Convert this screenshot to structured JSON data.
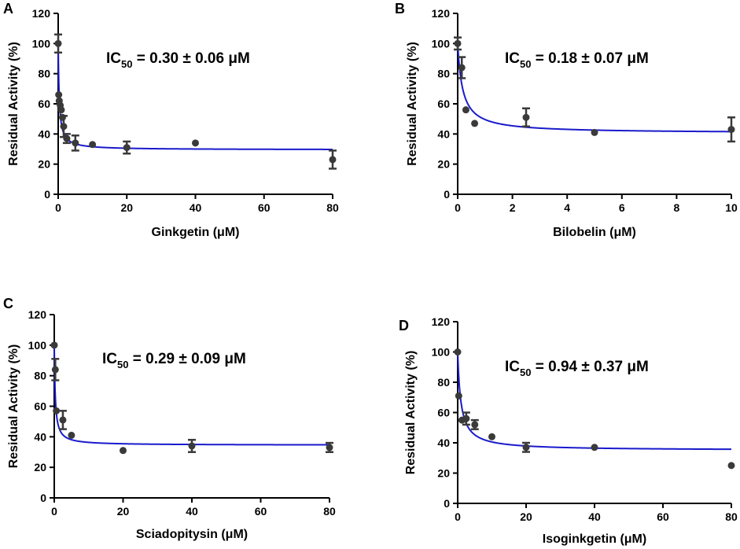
{
  "chart_data": [
    {
      "type": "scatter",
      "panel": "A",
      "xlabel": "Ginkgetin (μM)",
      "ylabel": "Residual Activity (%)",
      "xlim": [
        0,
        80
      ],
      "ylim": [
        0,
        120
      ],
      "xticks": [
        0,
        20,
        40,
        60,
        80
      ],
      "yticks": [
        0,
        20,
        40,
        60,
        80,
        100,
        120
      ],
      "ic50_label": {
        "prefix": "IC",
        "sub": "50",
        "text": " = 0.30 ± 0.06 μM"
      },
      "fit": {
        "bottom": 29.5,
        "ic50": 0.3
      },
      "points": [
        {
          "x": 0,
          "y": 100,
          "err": 6
        },
        {
          "x": 0.15,
          "y": 66,
          "err": 0
        },
        {
          "x": 0.3,
          "y": 62,
          "err": 0
        },
        {
          "x": 0.6,
          "y": 59,
          "err": 0
        },
        {
          "x": 0.9,
          "y": 56,
          "err": 0
        },
        {
          "x": 1.25,
          "y": 51,
          "err": 0
        },
        {
          "x": 1.6,
          "y": 45,
          "err": 7
        },
        {
          "x": 2.5,
          "y": 37,
          "err": 3
        },
        {
          "x": 5,
          "y": 34,
          "err": 5
        },
        {
          "x": 10,
          "y": 33,
          "err": 0
        },
        {
          "x": 20,
          "y": 31,
          "err": 4
        },
        {
          "x": 40,
          "y": 34,
          "err": 0
        },
        {
          "x": 80,
          "y": 23,
          "err": 6
        }
      ]
    },
    {
      "type": "scatter",
      "panel": "B",
      "xlabel": "Bilobelin (μM)",
      "ylabel": "Residual Activity (%)",
      "xlim": [
        0,
        10
      ],
      "ylim": [
        0,
        120
      ],
      "xticks": [
        0,
        2,
        4,
        6,
        8,
        10
      ],
      "yticks": [
        0,
        20,
        40,
        60,
        80,
        100,
        120
      ],
      "ic50_label": {
        "prefix": "IC",
        "sub": "50",
        "text": " = 0.18 ± 0.07 μM"
      },
      "fit": {
        "bottom": 40.5,
        "ic50": 0.18
      },
      "points": [
        {
          "x": 0,
          "y": 100,
          "err": 4
        },
        {
          "x": 0.15,
          "y": 84,
          "err": 7
        },
        {
          "x": 0.3,
          "y": 56,
          "err": 0
        },
        {
          "x": 0.62,
          "y": 47,
          "err": 0
        },
        {
          "x": 2.5,
          "y": 51,
          "err": 6
        },
        {
          "x": 5,
          "y": 41,
          "err": 0
        },
        {
          "x": 10,
          "y": 43,
          "err": 8
        }
      ]
    },
    {
      "type": "scatter",
      "panel": "C",
      "xlabel": "Sciadopitysin (μM)",
      "ylabel": "Residual Activity (%)",
      "xlim": [
        0,
        80
      ],
      "ylim": [
        0,
        120
      ],
      "xticks": [
        0,
        20,
        40,
        60,
        80
      ],
      "yticks": [
        0,
        20,
        40,
        60,
        80,
        100,
        120
      ],
      "ic50_label": {
        "prefix": "IC",
        "sub": "50",
        "text": " = 0.29 ± 0.09 μM"
      },
      "fit": {
        "bottom": 34.5,
        "ic50": 0.29
      },
      "points": [
        {
          "x": 0,
          "y": 100,
          "err": 0
        },
        {
          "x": 0.3,
          "y": 84,
          "err": 7
        },
        {
          "x": 0.6,
          "y": 57,
          "err": 0
        },
        {
          "x": 2.5,
          "y": 51,
          "err": 6
        },
        {
          "x": 5,
          "y": 41,
          "err": 0
        },
        {
          "x": 20,
          "y": 31,
          "err": 0
        },
        {
          "x": 40,
          "y": 34,
          "err": 4
        },
        {
          "x": 80,
          "y": 33,
          "err": 3
        }
      ]
    },
    {
      "type": "scatter",
      "panel": "D",
      "xlabel": "Isoginkgetin (μM)",
      "ylabel": "Residual Activity (%)",
      "xlim": [
        0,
        80
      ],
      "ylim": [
        0,
        120
      ],
      "xticks": [
        0,
        20,
        40,
        60,
        80
      ],
      "yticks": [
        0,
        20,
        40,
        60,
        80,
        100,
        120
      ],
      "ic50_label": {
        "prefix": "IC",
        "sub": "50",
        "text": " = 0.94 ± 0.37 μM"
      },
      "fit": {
        "bottom": 35,
        "ic50": 0.94
      },
      "points": [
        {
          "x": 0,
          "y": 100,
          "err": 0
        },
        {
          "x": 0.3,
          "y": 71,
          "err": 0
        },
        {
          "x": 1.25,
          "y": 55,
          "err": 0
        },
        {
          "x": 2.5,
          "y": 56,
          "err": 4
        },
        {
          "x": 5,
          "y": 52,
          "err": 3
        },
        {
          "x": 10,
          "y": 44,
          "err": 0
        },
        {
          "x": 20,
          "y": 37,
          "err": 3
        },
        {
          "x": 40,
          "y": 37,
          "err": 0
        },
        {
          "x": 80,
          "y": 25,
          "err": 0
        }
      ]
    }
  ]
}
